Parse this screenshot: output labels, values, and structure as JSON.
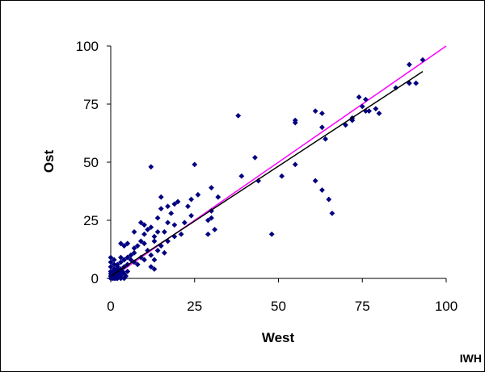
{
  "chart_data": {
    "type": "scatter",
    "xlabel": "West",
    "ylabel": "Ost",
    "xlim": [
      0,
      100
    ],
    "ylim": [
      0,
      100
    ],
    "xticks": [
      "0",
      "25",
      "50",
      "75",
      "100"
    ],
    "yticks": [
      "0",
      "25",
      "50",
      "75",
      "100"
    ],
    "grid": false,
    "legend": "none",
    "colors": {
      "points": "#000080",
      "identity_line": "#ff00ff",
      "trend_line": "#000000"
    },
    "identity_line": [
      [
        0,
        0
      ],
      [
        100,
        100
      ]
    ],
    "trend_line": [
      [
        0,
        1
      ],
      [
        93,
        89
      ]
    ],
    "points": [
      [
        0,
        0
      ],
      [
        0,
        1
      ],
      [
        0,
        2
      ],
      [
        0,
        3
      ],
      [
        0,
        5
      ],
      [
        0,
        7
      ],
      [
        0,
        9
      ],
      [
        0.5,
        0
      ],
      [
        0.5,
        1
      ],
      [
        0.5,
        2
      ],
      [
        1,
        0
      ],
      [
        1,
        1
      ],
      [
        1,
        2
      ],
      [
        1,
        3
      ],
      [
        1,
        4
      ],
      [
        1,
        6
      ],
      [
        1,
        8
      ],
      [
        1.5,
        0
      ],
      [
        1.5,
        2
      ],
      [
        2,
        0
      ],
      [
        2,
        1
      ],
      [
        2,
        3
      ],
      [
        2,
        4
      ],
      [
        2,
        5
      ],
      [
        2,
        6
      ],
      [
        2.5,
        2
      ],
      [
        3,
        0
      ],
      [
        3,
        1
      ],
      [
        3,
        2
      ],
      [
        3,
        4
      ],
      [
        3,
        7
      ],
      [
        3,
        9
      ],
      [
        3,
        15
      ],
      [
        3.5,
        3
      ],
      [
        4,
        0
      ],
      [
        4,
        2
      ],
      [
        4,
        5
      ],
      [
        4,
        8
      ],
      [
        4,
        14
      ],
      [
        4.5,
        1
      ],
      [
        5,
        3
      ],
      [
        5,
        6
      ],
      [
        5,
        9
      ],
      [
        5,
        15
      ],
      [
        6,
        8
      ],
      [
        6,
        10
      ],
      [
        7,
        7
      ],
      [
        7,
        11
      ],
      [
        7,
        13
      ],
      [
        7,
        20
      ],
      [
        8,
        6
      ],
      [
        8,
        14
      ],
      [
        9,
        9
      ],
      [
        9,
        16
      ],
      [
        9,
        24
      ],
      [
        10,
        8
      ],
      [
        10,
        15
      ],
      [
        10,
        19
      ],
      [
        10,
        23
      ],
      [
        11,
        12
      ],
      [
        11,
        21
      ],
      [
        12,
        5
      ],
      [
        12,
        10
      ],
      [
        12,
        22
      ],
      [
        12,
        48
      ],
      [
        13,
        4
      ],
      [
        13,
        8
      ],
      [
        13,
        16
      ],
      [
        13,
        18
      ],
      [
        14,
        12
      ],
      [
        14,
        20
      ],
      [
        14,
        26
      ],
      [
        15,
        14
      ],
      [
        15,
        30
      ],
      [
        15,
        35
      ],
      [
        16,
        11
      ],
      [
        16,
        20
      ],
      [
        17,
        16
      ],
      [
        17,
        24
      ],
      [
        17,
        31
      ],
      [
        18,
        28
      ],
      [
        19,
        18
      ],
      [
        19,
        23
      ],
      [
        19,
        32
      ],
      [
        20,
        33
      ],
      [
        21,
        19
      ],
      [
        22,
        24
      ],
      [
        23,
        31
      ],
      [
        24,
        27
      ],
      [
        24,
        34
      ],
      [
        25,
        49
      ],
      [
        26,
        36
      ],
      [
        29,
        19
      ],
      [
        29,
        25
      ],
      [
        30,
        26
      ],
      [
        30,
        29
      ],
      [
        30,
        39
      ],
      [
        31,
        21
      ],
      [
        32,
        35
      ],
      [
        38,
        70
      ],
      [
        39,
        44
      ],
      [
        43,
        52
      ],
      [
        44,
        42
      ],
      [
        48,
        19
      ],
      [
        51,
        44
      ],
      [
        55,
        49
      ],
      [
        55,
        67
      ],
      [
        55,
        68
      ],
      [
        61,
        42
      ],
      [
        61,
        72
      ],
      [
        63,
        38
      ],
      [
        63,
        65
      ],
      [
        63,
        71
      ],
      [
        64,
        60
      ],
      [
        65,
        34
      ],
      [
        66,
        28
      ],
      [
        70,
        66
      ],
      [
        72,
        68
      ],
      [
        72,
        69
      ],
      [
        74,
        78
      ],
      [
        75,
        74
      ],
      [
        76,
        72
      ],
      [
        76,
        77
      ],
      [
        77,
        72
      ],
      [
        79,
        73
      ],
      [
        80,
        71
      ],
      [
        85,
        82
      ],
      [
        89,
        84
      ],
      [
        89,
        92
      ],
      [
        91,
        84
      ],
      [
        93,
        94
      ]
    ]
  },
  "source_label": "IWH"
}
